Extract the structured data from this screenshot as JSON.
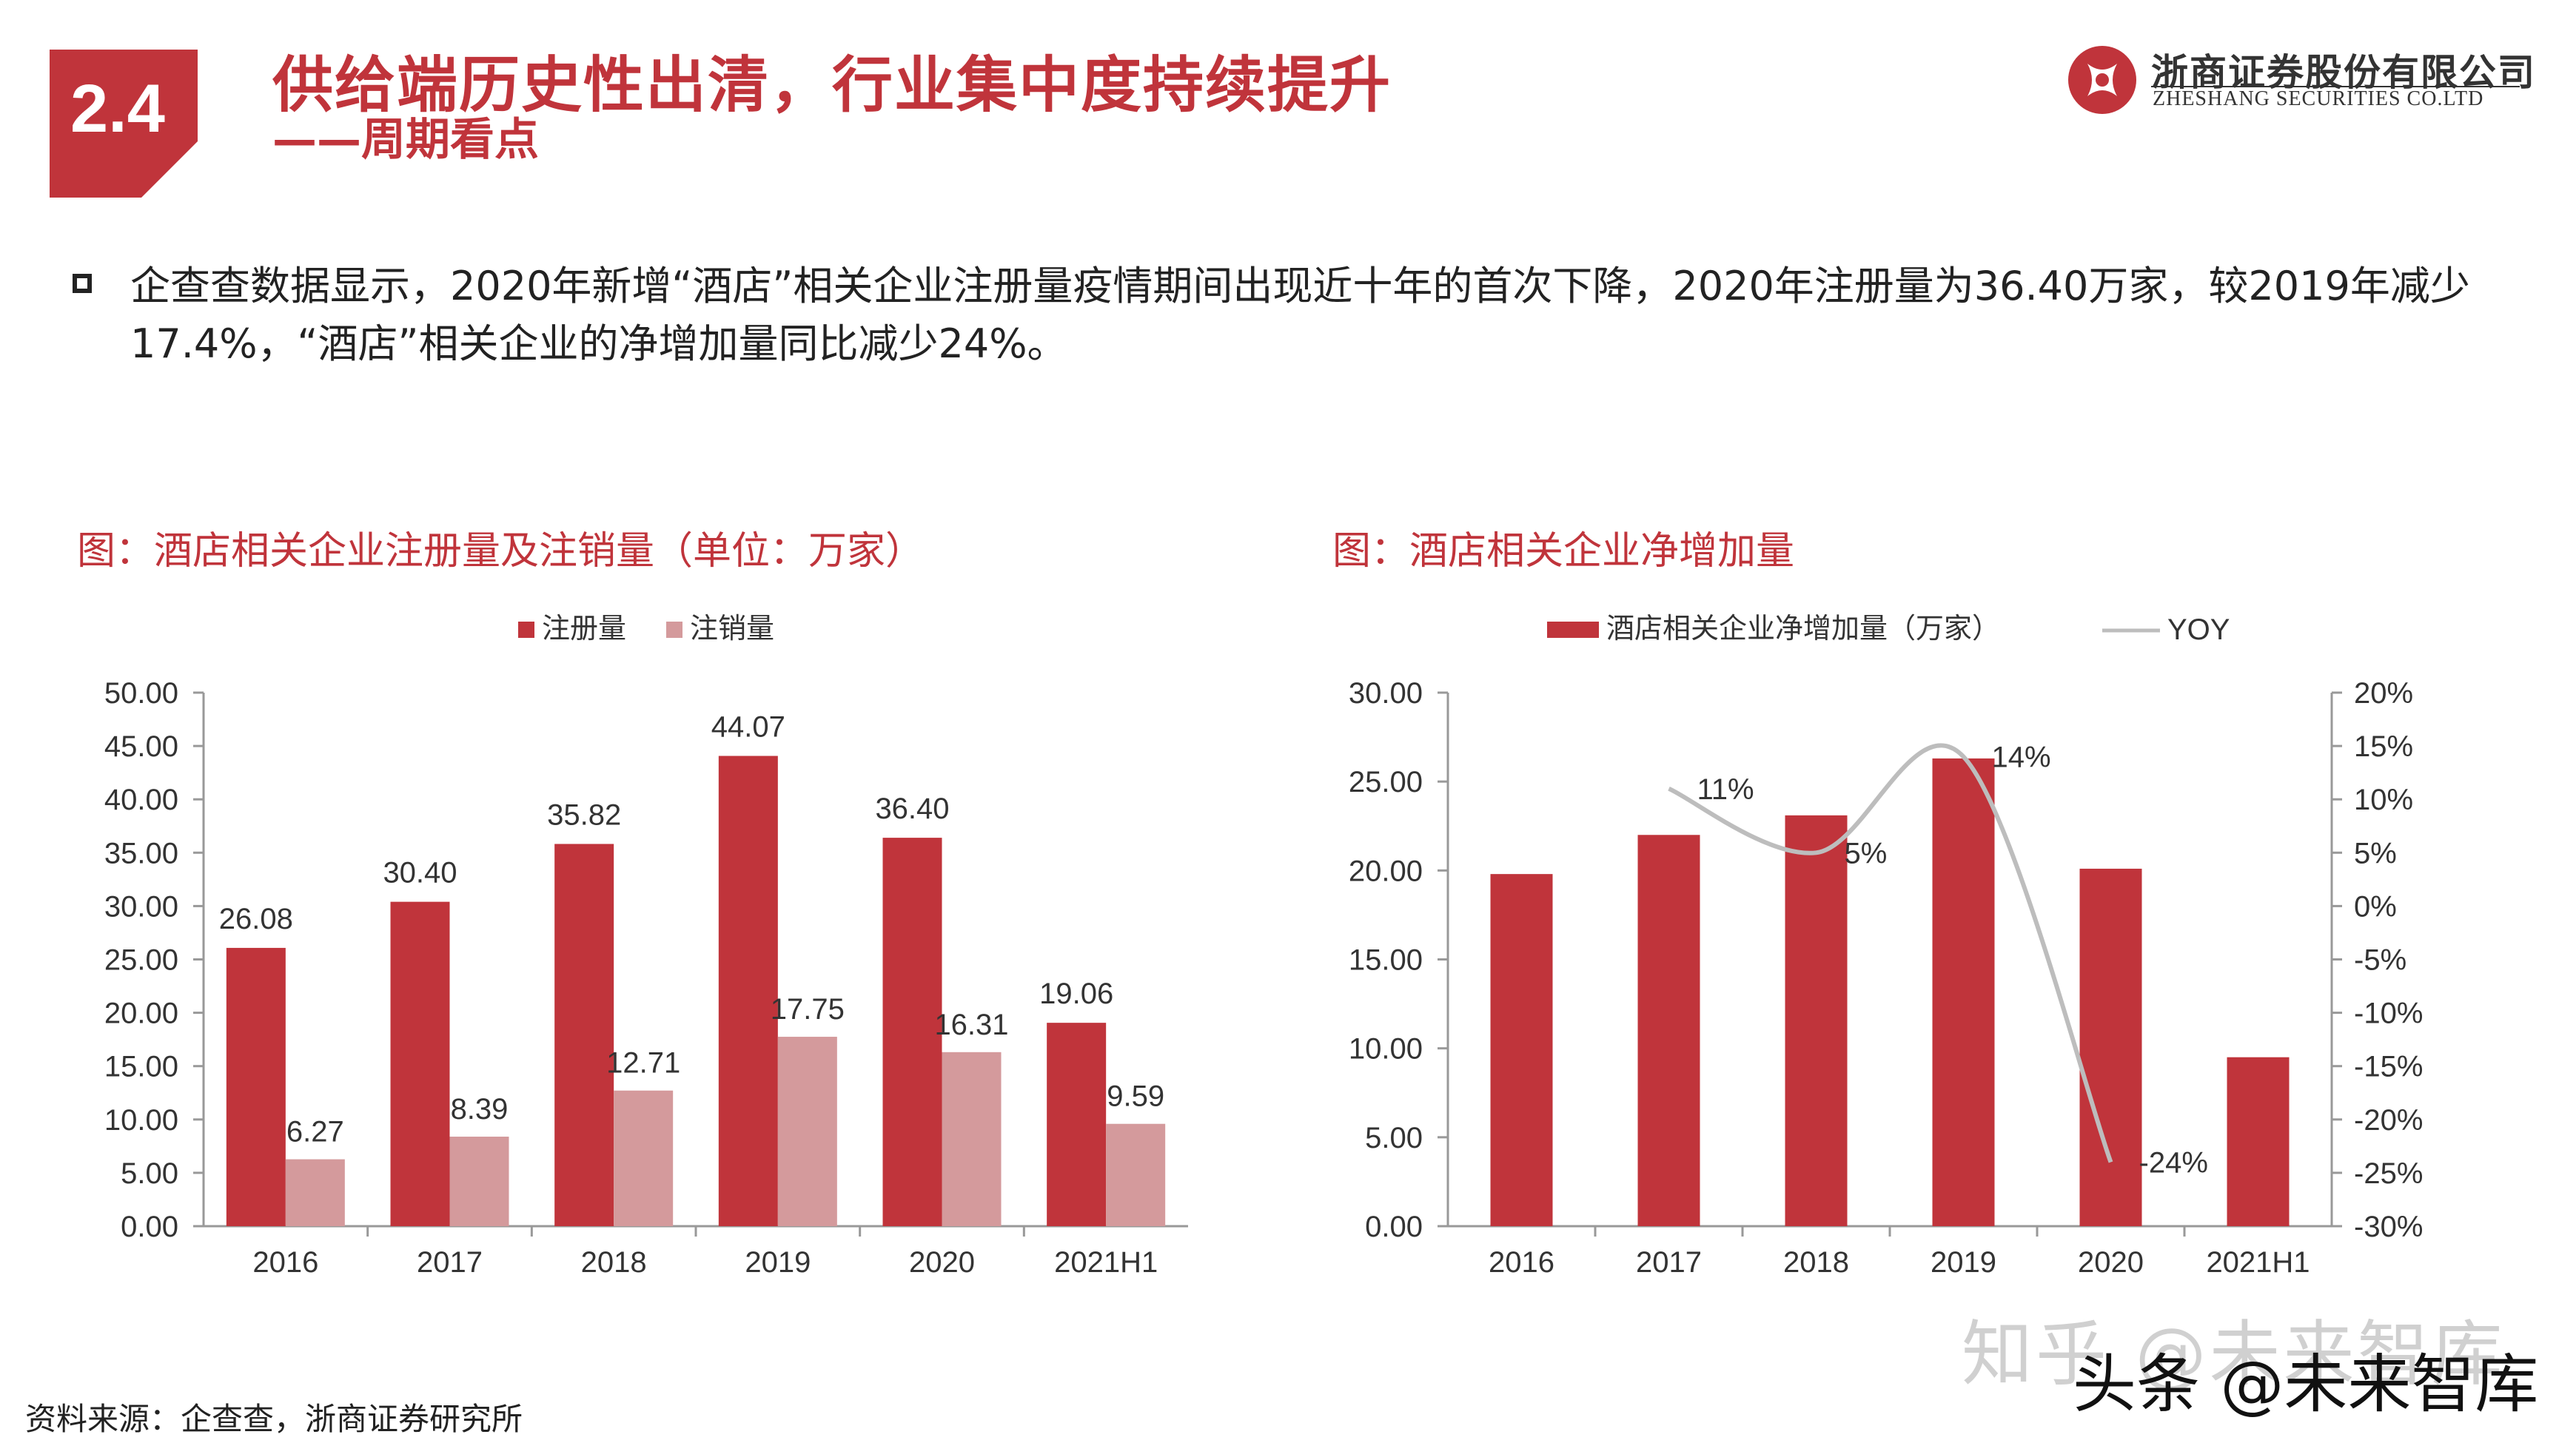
{
  "section_number": "2.4",
  "title": "供给端历史性出清，行业集中度持续提升",
  "subtitle": "——周期看点",
  "logo": {
    "cn": "浙商证券股份有限公司",
    "en": "ZHESHANG SECURITIES CO.LTD"
  },
  "body": "企查查数据显示，2020年新增“酒店”相关企业注册量疫情期间出现近十年的首次下降，2020年注册量为36.40万家，较2019年减少17.4%，“酒店”相关企业的净增加量同比减少24%。",
  "source": "资料来源：企查查，浙商证券研究所",
  "watermark": {
    "zhihu": "知乎 @未来智库",
    "toutiao": "头条 @未来智库"
  },
  "colors": {
    "primary_red": "#c0343b",
    "light_red": "#d49a9c",
    "yoy_line": "#bdbdbd"
  },
  "chart_data": [
    {
      "type": "bar",
      "title": "图：酒店相关企业注册量及注销量（单位：万家）",
      "categories": [
        "2016",
        "2017",
        "2018",
        "2019",
        "2020",
        "2021H1"
      ],
      "series": [
        {
          "name": "注册量",
          "values": [
            26.08,
            30.4,
            35.82,
            44.07,
            36.4,
            19.06
          ],
          "labels": [
            "26.08",
            "30.40",
            "35.82",
            "44.07",
            "36.40",
            "19.06"
          ]
        },
        {
          "name": "注销量",
          "values": [
            6.27,
            8.39,
            12.71,
            17.75,
            16.31,
            9.59
          ],
          "labels": [
            "6.27",
            "8.39",
            "12.71",
            "17.75",
            "16.31",
            "9.59"
          ]
        }
      ],
      "ylim": [
        0,
        50
      ],
      "yticks": [
        "0.00",
        "5.00",
        "10.00",
        "15.00",
        "20.00",
        "25.00",
        "30.00",
        "35.00",
        "40.00",
        "45.00",
        "50.00"
      ],
      "legend": "top"
    },
    {
      "type": "bar",
      "title": "图：酒店相关企业净增加量",
      "categories": [
        "2016",
        "2017",
        "2018",
        "2019",
        "2020",
        "2021H1"
      ],
      "series": [
        {
          "name": "酒店相关企业净增加量（万家）",
          "values": [
            19.8,
            22.0,
            23.1,
            26.3,
            20.1,
            9.5
          ],
          "axis": "left"
        },
        {
          "name": "YOY",
          "type": "line",
          "values": [
            null,
            11,
            5,
            14,
            -24,
            null
          ],
          "labels": [
            "",
            "11%",
            "5%",
            "14%",
            "-24%",
            ""
          ],
          "axis": "right"
        }
      ],
      "ylim": [
        0,
        30
      ],
      "yticks": [
        "0.00",
        "5.00",
        "10.00",
        "15.00",
        "20.00",
        "25.00",
        "30.00"
      ],
      "y2lim": [
        -30,
        20
      ],
      "y2ticks": [
        "-30%",
        "-25%",
        "-20%",
        "-15%",
        "-10%",
        "-5%",
        "0%",
        "5%",
        "10%",
        "15%",
        "20%"
      ],
      "legend": "top"
    }
  ]
}
